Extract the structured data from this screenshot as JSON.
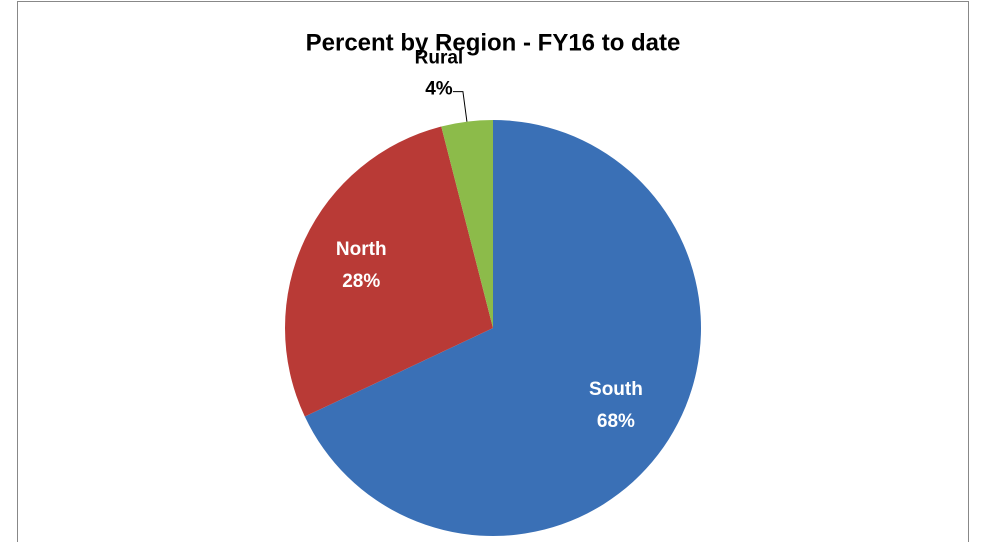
{
  "chart_data": {
    "type": "pie",
    "title": "Percent by Region - FY16 to date",
    "categories": [
      "South",
      "North",
      "Rural"
    ],
    "values": [
      68,
      28,
      4
    ],
    "value_labels": [
      "68%",
      "28%",
      "4%"
    ],
    "colors": [
      "#3a70b6",
      "#b93a36",
      "#8cbb4a"
    ]
  }
}
